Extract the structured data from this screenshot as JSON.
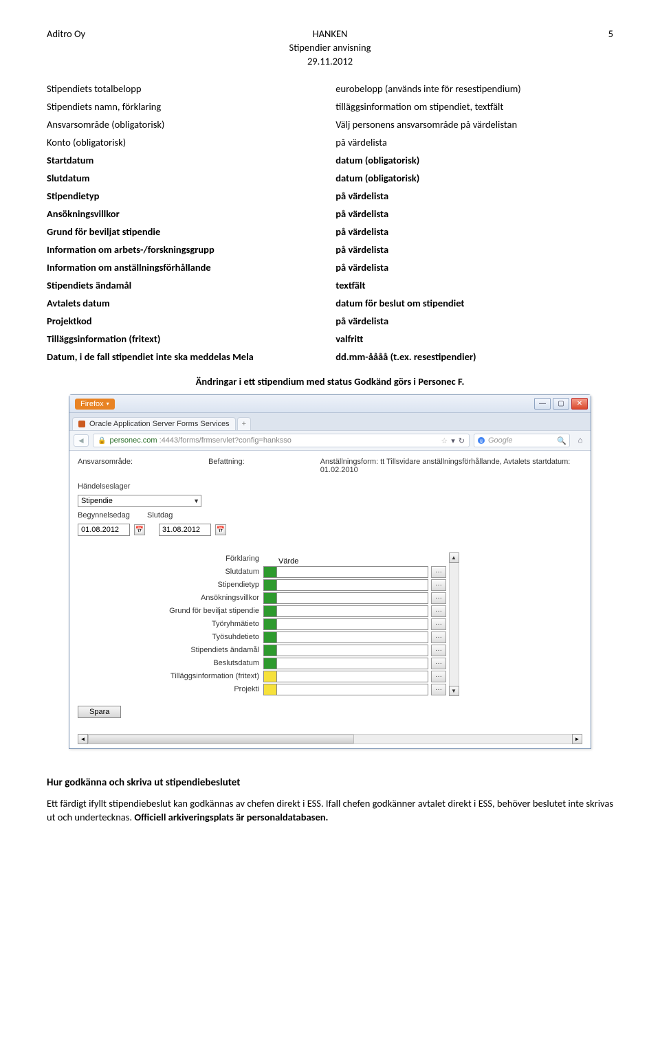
{
  "header": {
    "company": "Aditro Oy",
    "title": "HANKEN",
    "pageno": "5",
    "subtitle": "Stipendier anvisning",
    "date": "29.11.2012"
  },
  "definitions": [
    {
      "label": "Stipendiets totalbelopp",
      "desc": "eurobelopp (används inte för resestipendium)",
      "lbold": false,
      "dbold": false
    },
    {
      "label": "Stipendiets namn, förklaring",
      "desc": "tilläggsinformation om stipendiet, textfält",
      "lbold": false,
      "dbold": false
    },
    {
      "label": "Ansvarsområde (obligatorisk)",
      "desc": "Välj personens ansvarsområde på värdelistan",
      "lbold": false,
      "dbold": false
    },
    {
      "label": "Konto (obligatorisk)",
      "desc": "på värdelista",
      "lbold": false,
      "dbold": false
    },
    {
      "label": "Startdatum",
      "desc": "datum (obligatorisk)",
      "lbold": true,
      "dbold": true
    },
    {
      "label": "Slutdatum",
      "desc": "datum (obligatorisk)",
      "lbold": true,
      "dbold": true
    },
    {
      "label": "Stipendietyp",
      "desc": "på värdelista",
      "lbold": true,
      "dbold": true
    },
    {
      "label": "Ansökningsvillkor",
      "desc": "på värdelista",
      "lbold": true,
      "dbold": true
    },
    {
      "label": "Grund för beviljat stipendie",
      "desc": "på värdelista",
      "lbold": true,
      "dbold": true
    },
    {
      "label": "Information om arbets-/forskningsgrupp",
      "desc": "på värdelista",
      "lbold": true,
      "dbold": true
    },
    {
      "label": "Information om anställningsförhållande",
      "desc": "på värdelista",
      "lbold": true,
      "dbold": true
    },
    {
      "label": "Stipendiets ändamål",
      "desc": "textfält",
      "lbold": true,
      "dbold": true
    },
    {
      "label": "Avtalets datum",
      "desc": "datum för beslut om stipendiet",
      "lbold": true,
      "dbold": true
    },
    {
      "label": "Projektkod",
      "desc": "på värdelista",
      "lbold": true,
      "dbold": true
    },
    {
      "label": "Tilläggsinformation (fritext)",
      "desc": "valfritt",
      "lbold": true,
      "dbold": true
    },
    {
      "label": "Datum, i de fall stipendiet inte ska meddelas Mela",
      "desc": "dd.mm-åååå (t.ex. resestipendier)",
      "lbold": true,
      "dbold": true
    }
  ],
  "caption": "Ändringar i ett stipendium med status Godkänd görs i Personec F.",
  "screenshot": {
    "firefox_label": "Firefox",
    "tab_title": "Oracle Application Server Forms Services",
    "url_host": "personec.com",
    "url_full": "https://f.personec.com:4443/forms/frmservlet?config=hanksso",
    "search_placeholder": "Google",
    "top_labels": {
      "ansvar": "Ansvarsområde:",
      "befattning": "Befattning:",
      "anst_label": "Anställningsform:",
      "anst_value": "tt Tillsvidare anställningsförhållande, Avtalets startdatum: 01.02.2010"
    },
    "handelseslager_label": "Händelseslager",
    "handelseslager_value": "Stipendie",
    "begynnelse_label": "Begynnelsedag",
    "begynnelse_value": "01.08.2012",
    "slutdag_label": "Slutdag",
    "slutdag_value": "31.08.2012",
    "grid_header_left": "Förklaring",
    "grid_header_right": "Värde",
    "rows": [
      {
        "label": "Slutdatum",
        "color": "green"
      },
      {
        "label": "Stipendietyp",
        "color": "green"
      },
      {
        "label": "Ansökningsvillkor",
        "color": "green"
      },
      {
        "label": "Grund för beviljat stipendie",
        "color": "green"
      },
      {
        "label": "Työryhmätieto",
        "color": "green"
      },
      {
        "label": "Työsuhdetieto",
        "color": "green"
      },
      {
        "label": "Stipendiets ändamål",
        "color": "green"
      },
      {
        "label": "Beslutsdatum",
        "color": "green"
      },
      {
        "label": "Tilläggsinformation (fritext)",
        "color": "yellow"
      },
      {
        "label": "Projekti",
        "color": "yellow"
      }
    ],
    "spara": "Spara"
  },
  "section2": {
    "heading": "Hur godkänna och skriva ut stipendiebeslutet",
    "para_a": "Ett färdigt ifyllt stipendiebeslut  kan godkännas av chefen direkt i ESS. Ifall chefen godkänner avtalet direkt i ESS, behöver beslutet inte skrivas ut och undertecknas. ",
    "para_b": "Officiell arkiveringsplats är personaldatabasen."
  }
}
